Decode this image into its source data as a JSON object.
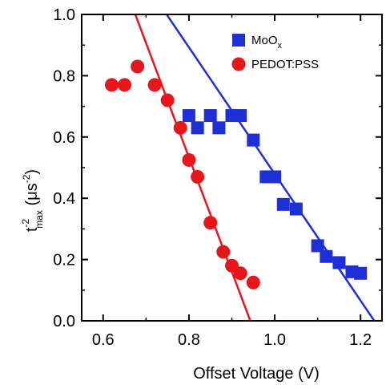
{
  "chart_data": {
    "type": "scatter",
    "xlabel": "Offset Voltage (V)",
    "ylabel": {
      "main": "t",
      "sup": "-2",
      "sub": "max",
      "unit_open": " (μs",
      "unit_sup": "-2",
      "unit_close": ")"
    },
    "xlim": [
      0.55,
      1.25
    ],
    "ylim": [
      0.0,
      1.0
    ],
    "xticks": [
      0.6,
      0.8,
      1.0,
      1.2
    ],
    "xtick_labels": [
      "0.6",
      "0.8",
      "1.0",
      "1.2"
    ],
    "yticks": [
      0.0,
      0.2,
      0.4,
      0.6,
      0.8,
      1.0
    ],
    "ytick_labels": [
      "0.0",
      "0.2",
      "0.4",
      "0.6",
      "0.8",
      "1.0"
    ],
    "grid": false,
    "legend_position": "top-right",
    "series": [
      {
        "name": "MoOx",
        "legend_label": {
          "main": "MoO",
          "sub": "x"
        },
        "marker": "square",
        "color": "#1f2fd8",
        "x": [
          0.8,
          0.82,
          0.85,
          0.87,
          0.9,
          0.92,
          0.95,
          0.98,
          1.0,
          1.02,
          1.05,
          1.1,
          1.12,
          1.15,
          1.18,
          1.2
        ],
        "y": [
          0.67,
          0.63,
          0.67,
          0.63,
          0.67,
          0.67,
          0.59,
          0.47,
          0.47,
          0.38,
          0.365,
          0.245,
          0.21,
          0.19,
          0.16,
          0.155
        ],
        "fit": {
          "x": [
            0.748,
            1.232
          ],
          "y": [
            1.0,
            0.0
          ]
        }
      },
      {
        "name": "PEDOT:PSS",
        "legend_label": {
          "main": "PEDOT:PSS",
          "sub": ""
        },
        "marker": "circle",
        "color": "#e8161b",
        "x": [
          0.62,
          0.65,
          0.68,
          0.72,
          0.75,
          0.78,
          0.8,
          0.82,
          0.85,
          0.88,
          0.9,
          0.92,
          0.95
        ],
        "y": [
          0.77,
          0.77,
          0.83,
          0.77,
          0.72,
          0.63,
          0.525,
          0.47,
          0.32,
          0.225,
          0.18,
          0.155,
          0.125
        ],
        "fit": {
          "x": [
            0.675,
            0.943
          ],
          "y": [
            1.0,
            0.0
          ]
        }
      }
    ]
  }
}
